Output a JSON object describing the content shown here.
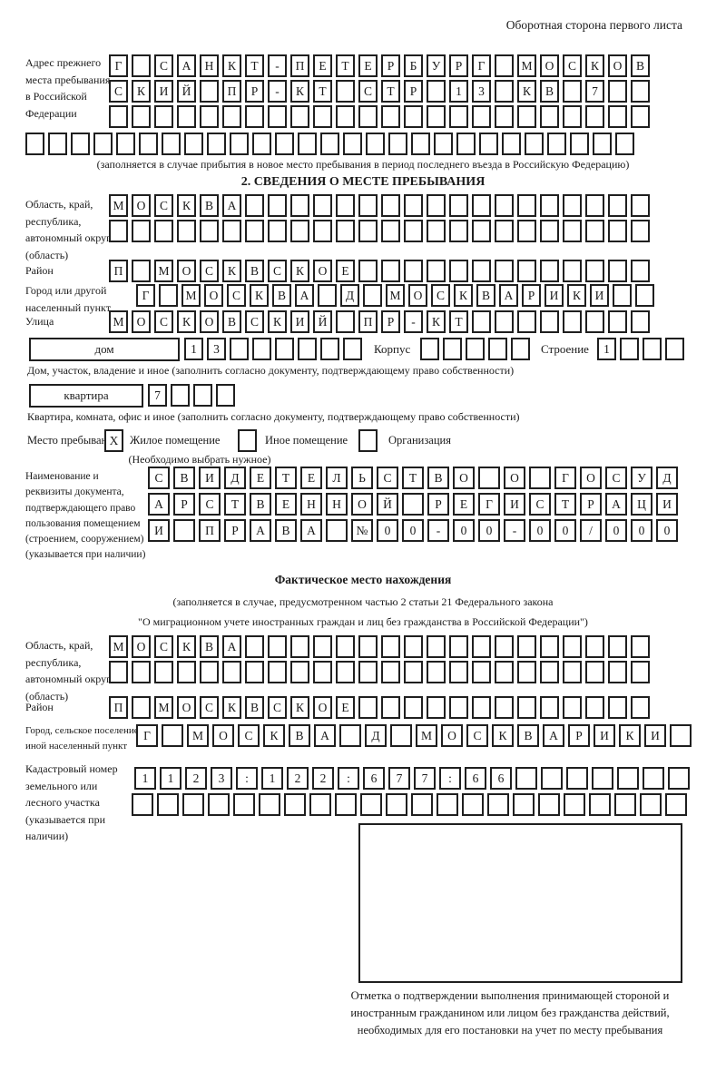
{
  "header": {
    "page_side_note": "Оборотная сторона первого листа"
  },
  "prev_address": {
    "label": "Адрес прежнего места пребывания в Российской Федерации",
    "rows": [
      {
        "text": "Г САНКТ-ПЕТЕРБУРГ МОСКОВ",
        "count": 24
      },
      {
        "text": "СКИЙ ПР-КТ СТР 13 КВ 7",
        "count": 24
      },
      {
        "text": "",
        "count": 24
      }
    ],
    "row_full": {
      "text": "",
      "count": 27
    },
    "note": "(заполняется в случае прибытия в новое место пребывания в период последнего въезда в Российскую Федерацию)"
  },
  "section2": {
    "title": "2. СВЕДЕНИЯ О МЕСТЕ ПРЕБЫВАНИЯ",
    "oblast": {
      "label": "Область, край, республика, автономный округ (область)",
      "rows": [
        {
          "text": "МОСКВА",
          "count": 24
        },
        {
          "text": "",
          "count": 24
        }
      ]
    },
    "rayon": {
      "label": "Район",
      "row": {
        "text": "П МОСКВСКОЕ",
        "count": 24
      }
    },
    "gorod": {
      "label": "Город или другой населенный пункт",
      "row": {
        "text": "Г МОСКВА Д МОСКВАРИКИ",
        "count": 23
      }
    },
    "ulitsa": {
      "label": "Улица",
      "row": {
        "text": "МОСКОВСКИЙ ПР-КТ",
        "count": 24
      }
    },
    "dom": {
      "label": "дом",
      "row": {
        "text": "13",
        "count": 8
      }
    },
    "korpus": {
      "label": "Корпус",
      "row": {
        "text": "",
        "count": 5
      }
    },
    "stroenie": {
      "label": "Строение",
      "row": {
        "text": "1",
        "count": 4
      }
    },
    "dom_note": "Дом, участок, владение и иное (заполнить согласно документу, подтверждающему право собственности)",
    "kvartira": {
      "label": "квартира",
      "row": {
        "text": "7",
        "count": 4
      }
    },
    "kvartira_note": "Квартира, комната, офис и иное (заполнить согласно документу, подтверждающему право собственности)",
    "mesto": {
      "label": "Место пребывания:",
      "options": [
        {
          "label": "Жилое помещение",
          "checked": "X"
        },
        {
          "label": "Иное помещение",
          "checked": ""
        },
        {
          "label": "Организация",
          "checked": ""
        }
      ],
      "note": "(Необходимо выбрать нужное)"
    },
    "doc": {
      "label": "Наименование и реквизиты документа, подтверждающего право пользования помещением (строением, сооружением) (указывается при наличии)",
      "rows": [
        {
          "text": "СВИДЕТЕЛЬСТВО О ГОСУД",
          "count": 21
        },
        {
          "text": "АРСТВЕННОЙ РЕГИСТРАЦИ",
          "count": 21
        },
        {
          "text": "И ПРАВА №00-00-00/000",
          "count": 21
        }
      ]
    }
  },
  "fact": {
    "title": "Фактическое место нахождения",
    "note_line1": "(заполняется в случае, предусмотренном частью 2 статьи 21 Федерального закона",
    "note_line2": "\"О миграционном учете иностранных граждан и лиц без гражданства в Российской Федерации\")",
    "oblast": {
      "label": "Область, край, республика, автономный округ (область)",
      "rows": [
        {
          "text": "МОСКВА",
          "count": 24
        },
        {
          "text": "",
          "count": 24
        }
      ]
    },
    "rayon": {
      "label": "Район",
      "row": {
        "text": "П МОСКВСКОЕ",
        "count": 24
      }
    },
    "gorod": {
      "label": "Город, сельское поселение, иной населенный пункт",
      "row": {
        "text": "Г МОСКВА Д МОСКВАРИКИ",
        "count": 22
      }
    },
    "kadastr": {
      "label": "Кадастровый номер земельного или лесного участка (указывается при наличии)",
      "rows": [
        {
          "text": "1123:122:677:66",
          "count": 22
        },
        {
          "text": "",
          "count": 22
        }
      ]
    },
    "stamp_caption": "Отметка о подтверждении выполнения принимающей стороной и иностранным гражданином или лицом без гражданства действий, необходимых для его постановки на учет по месту пребывания"
  }
}
